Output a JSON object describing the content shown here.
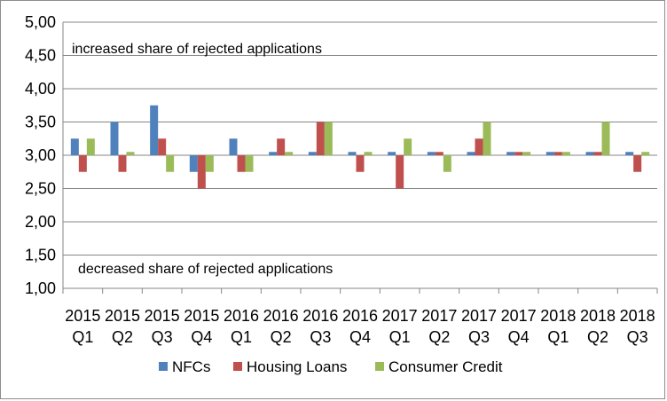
{
  "chart_data": {
    "type": "bar",
    "categories": [
      [
        "2015",
        "Q1"
      ],
      [
        "2015",
        "Q2"
      ],
      [
        "2015",
        "Q3"
      ],
      [
        "2015",
        "Q4"
      ],
      [
        "2016",
        "Q1"
      ],
      [
        "2016",
        "Q2"
      ],
      [
        "2016",
        "Q3"
      ],
      [
        "2016",
        "Q4"
      ],
      [
        "2017",
        "Q1"
      ],
      [
        "2017",
        "Q2"
      ],
      [
        "2017",
        "Q3"
      ],
      [
        "2017",
        "Q4"
      ],
      [
        "2018",
        "Q1"
      ],
      [
        "2018",
        "Q2"
      ],
      [
        "2018",
        "Q3"
      ]
    ],
    "series": [
      {
        "name": "NFCs",
        "color": "#4f81bd",
        "values": [
          3.25,
          3.5,
          3.75,
          2.75,
          3.25,
          3.05,
          3.05,
          3.05,
          3.05,
          3.05,
          3.05,
          3.05,
          3.05,
          3.05,
          3.05
        ]
      },
      {
        "name": "Housing Loans",
        "color": "#c0504d",
        "values": [
          2.75,
          2.75,
          3.25,
          2.5,
          2.75,
          3.25,
          3.5,
          2.75,
          2.5,
          3.05,
          3.25,
          3.05,
          3.05,
          3.05,
          2.75
        ]
      },
      {
        "name": "Consumer Credit",
        "color": "#9bbb59",
        "values": [
          3.25,
          3.05,
          2.75,
          2.75,
          2.75,
          3.05,
          3.5,
          3.05,
          3.25,
          2.75,
          3.5,
          3.05,
          3.05,
          3.5,
          3.05
        ]
      }
    ],
    "baseline": 3.0,
    "ylim": [
      1.0,
      5.0
    ],
    "yticks": [
      "1,00",
      "1,50",
      "2,00",
      "2,50",
      "3,00",
      "3,50",
      "4,00",
      "4,50",
      "5,00"
    ],
    "annotations": {
      "top": "increased  share of rejected applications",
      "bottom": "decreased share of rejected applications"
    },
    "gridlines": true,
    "legend_position": "bottom"
  }
}
